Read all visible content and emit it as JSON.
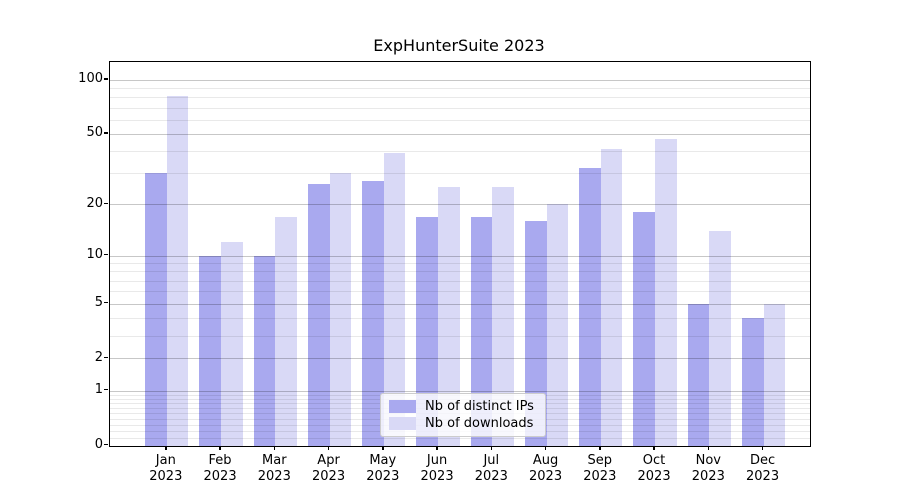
{
  "chart_data": {
    "type": "bar",
    "title": "ExpHunterSuite 2023",
    "x_tick_months": [
      "Jan",
      "Feb",
      "Mar",
      "Apr",
      "May",
      "Jun",
      "Jul",
      "Aug",
      "Sep",
      "Oct",
      "Nov",
      "Dec"
    ],
    "x_tick_year": "2023",
    "categories": [
      "Jan 2023",
      "Feb 2023",
      "Mar 2023",
      "Apr 2023",
      "May 2023",
      "Jun 2023",
      "Jul 2023",
      "Aug 2023",
      "Sep 2023",
      "Oct 2023",
      "Nov 2023",
      "Dec 2023"
    ],
    "series": [
      {
        "name": "Nb of distinct IPs",
        "color": "#a9a9ef",
        "values": [
          30,
          10,
          10,
          26,
          27,
          17,
          17,
          16,
          32,
          18,
          5,
          4
        ]
      },
      {
        "name": "Nb of downloads",
        "color": "#d9d9f6",
        "values": [
          81,
          12,
          17,
          30,
          39,
          25,
          25,
          20,
          41,
          47,
          14,
          5
        ]
      }
    ],
    "yscale": "log1p",
    "ylim": [
      0,
      125.5
    ],
    "y_ticks": [
      100,
      50,
      20,
      10,
      5,
      2,
      1,
      0
    ],
    "y_minor_ticks": [
      0.1,
      0.2,
      0.3,
      0.4,
      0.5,
      0.6,
      0.7,
      0.8,
      0.9,
      3,
      4,
      6,
      7,
      8,
      9,
      30,
      40,
      60,
      70,
      80,
      90
    ],
    "grid": true,
    "legend_position": "lower center"
  }
}
